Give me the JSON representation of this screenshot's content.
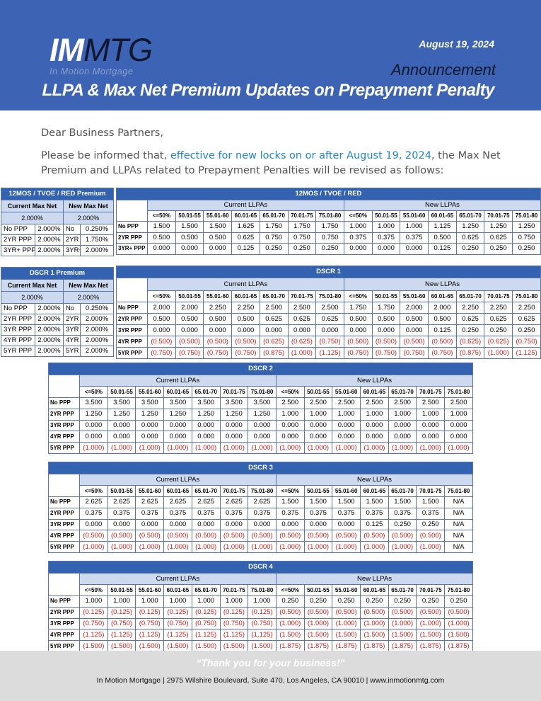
{
  "header": {
    "logo_im": "IM",
    "logo_mtg": "MTG",
    "logo_sub": "In Motion Mortgage",
    "date": "August 19, 2024",
    "announcement": "Announcement",
    "title": "LLPA & Max Net Premium Updates on Prepayment Penalty"
  },
  "intro": {
    "greeting": "Dear Business Partners,",
    "p_pre": "Please be informed that, ",
    "p_hl": "effective for new locks on or after August 19, 2024",
    "p_post": ", the Max Net Premium and LLPAs related to Prepayment Penalties will be revised as follows:"
  },
  "ranges": [
    "<=50%",
    "50.01-55",
    "55.01-60",
    "60.01-65",
    "65.01-70",
    "70.01-75",
    "75.01-80"
  ],
  "group_labels": {
    "current": "Current LLPAs",
    "new": "New LLPAs"
  },
  "premium_headers": {
    "current": "Current Max Net",
    "new": "New Max Net"
  },
  "premium_tables": [
    {
      "title": "12MOS / TVOE / RED  Premium",
      "current_top": "2.000%",
      "new_top": "2.000%",
      "rows": [
        [
          "No PPP",
          "2.000%",
          "No",
          "0.250%"
        ],
        [
          "2YR PPP",
          "2.000%",
          "2YR",
          "1.750%"
        ],
        [
          "3YR+ PPP",
          "2.000%",
          "3YR+",
          "2.000%"
        ]
      ]
    },
    {
      "title": "DSCR 1 Premium",
      "current_top": "2.000%",
      "new_top": "2.000%",
      "rows": [
        [
          "No PPP",
          "2.000%",
          "No",
          "0.250%"
        ],
        [
          "2YR PPP",
          "2.000%",
          "2YR",
          "2.000%"
        ],
        [
          "3YR PPP",
          "2.000%",
          "3YR",
          "2.000%"
        ],
        [
          "4YR PPP",
          "2.000%",
          "4YR",
          "2.000%"
        ],
        [
          "5YR PPP",
          "2.000%",
          "5YR",
          "2.000%"
        ]
      ]
    }
  ],
  "llpa_tables": [
    {
      "title": "12MOS / TVOE / RED",
      "rows": [
        {
          "label": "No PPP",
          "current": [
            "1.500",
            "1.500",
            "1.500",
            "1.625",
            "1.750",
            "1.750",
            "1.750"
          ],
          "new": [
            "1.000",
            "1.000",
            "1.000",
            "1.125",
            "1.250",
            "1.250",
            "1.250"
          ]
        },
        {
          "label": "2YR PPP",
          "current": [
            "0.500",
            "0.500",
            "0.500",
            "0.625",
            "0.750",
            "0.750",
            "0.750"
          ],
          "new": [
            "0.375",
            "0.375",
            "0.375",
            "0.500",
            "0.625",
            "0.625",
            "0.750"
          ]
        },
        {
          "label": "3YR+ PPP",
          "current": [
            "0.000",
            "0.000",
            "0.000",
            "0.125",
            "0.250",
            "0.250",
            "0.250"
          ],
          "new": [
            "0.000",
            "0.000",
            "0.000",
            "0.125",
            "0.250",
            "0.250",
            "0.250"
          ]
        }
      ]
    },
    {
      "title": "DSCR 1",
      "rows": [
        {
          "label": "No PPP",
          "current": [
            "2.000",
            "2.000",
            "2.250",
            "2.250",
            "2.500",
            "2.500",
            "2.500"
          ],
          "new": [
            "1.750",
            "1.750",
            "2.000",
            "2.000",
            "2.250",
            "2.250",
            "2.250"
          ]
        },
        {
          "label": "2YR PPP",
          "current": [
            "0.500",
            "0.500",
            "0.500",
            "0.500",
            "0.625",
            "0.625",
            "0.625"
          ],
          "new": [
            "0.500",
            "0.500",
            "0.500",
            "0.500",
            "0.625",
            "0.625",
            "0.625"
          ]
        },
        {
          "label": "3YR PPP",
          "current": [
            "0.000",
            "0.000",
            "0.000",
            "0.000",
            "0.000",
            "0.000",
            "0.000"
          ],
          "new": [
            "0.000",
            "0.000",
            "0.000",
            "0.125",
            "0.250",
            "0.250",
            "0.250"
          ]
        },
        {
          "label": "4YR PPP",
          "current": [
            "(0.500)",
            "(0.500)",
            "(0.500)",
            "(0.500)",
            "(0.625)",
            "(0.625)",
            "(0.750)"
          ],
          "new": [
            "(0.500)",
            "(0.500)",
            "(0.500)",
            "(0.500)",
            "(0.625)",
            "(0.625)",
            "(0.750)"
          ]
        },
        {
          "label": "5YR PPP",
          "current": [
            "(0.750)",
            "(0.750)",
            "(0.750)",
            "(0.750)",
            "(0.875)",
            "(1.000)",
            "(1.125)"
          ],
          "new": [
            "(0.750)",
            "(0.750)",
            "(0.750)",
            "(0.750)",
            "(0.875)",
            "(1.000)",
            "(1.125)"
          ]
        }
      ]
    },
    {
      "title": "DSCR 2",
      "rows": [
        {
          "label": "No PPP",
          "current": [
            "3.500",
            "3.500",
            "3.500",
            "3.500",
            "3.500",
            "3.500",
            "3.500"
          ],
          "new": [
            "2.500",
            "2.500",
            "2.500",
            "2.500",
            "2.500",
            "2.500",
            "2.500"
          ]
        },
        {
          "label": "2YR PPP",
          "current": [
            "1.250",
            "1.250",
            "1.250",
            "1.250",
            "1.250",
            "1.250",
            "1.250"
          ],
          "new": [
            "1.000",
            "1.000",
            "1.000",
            "1.000",
            "1.000",
            "1.000",
            "1.000"
          ]
        },
        {
          "label": "3YR PPP",
          "current": [
            "0.000",
            "0.000",
            "0.000",
            "0.000",
            "0.000",
            "0.000",
            "0.000"
          ],
          "new": [
            "0.000",
            "0.000",
            "0.000",
            "0.000",
            "0.000",
            "0.000",
            "0.000"
          ]
        },
        {
          "label": "4YR PPP",
          "current": [
            "0.000",
            "0.000",
            "0.000",
            "0.000",
            "0.000",
            "0.000",
            "0.000"
          ],
          "new": [
            "0.000",
            "0.000",
            "0.000",
            "0.000",
            "0.000",
            "0.000",
            "0.000"
          ]
        },
        {
          "label": "5YR PPP",
          "current": [
            "(1.000)",
            "(1.000)",
            "(1.000)",
            "(1.000)",
            "(1.000)",
            "(1.000)",
            "(1.000)"
          ],
          "new": [
            "(1.000)",
            "(1.000)",
            "(1.000)",
            "(1.000)",
            "(1.000)",
            "(1.000)",
            "(1.000)"
          ]
        }
      ]
    },
    {
      "title": "DSCR 3",
      "rows": [
        {
          "label": "No PPP",
          "current": [
            "2.625",
            "2.625",
            "2.625",
            "2.625",
            "2.625",
            "2.625",
            "2.625"
          ],
          "new": [
            "1.500",
            "1.500",
            "1.500",
            "1.500",
            "1.500",
            "1.500",
            "N/A"
          ]
        },
        {
          "label": "2YR PPP",
          "current": [
            "0.375",
            "0.375",
            "0.375",
            "0.375",
            "0.375",
            "0.375",
            "0.375"
          ],
          "new": [
            "0.375",
            "0.375",
            "0.375",
            "0.375",
            "0.375",
            "0.375",
            "N/A"
          ]
        },
        {
          "label": "3YR PPP",
          "current": [
            "0.000",
            "0.000",
            "0.000",
            "0.000",
            "0.000",
            "0.000",
            "0.000"
          ],
          "new": [
            "0.000",
            "0.000",
            "0.000",
            "0.125",
            "0.250",
            "0.250",
            "N/A"
          ]
        },
        {
          "label": "4YR PPP",
          "current": [
            "(0.500)",
            "(0.500)",
            "(0.500)",
            "(0.500)",
            "(0.500)",
            "(0.500)",
            "(0.500)"
          ],
          "new": [
            "(0.500)",
            "(0.500)",
            "(0.500)",
            "(0.500)",
            "(0.500)",
            "(0.500)",
            "N/A"
          ]
        },
        {
          "label": "5YR PPP",
          "current": [
            "(1.000)",
            "(1.000)",
            "(1.000)",
            "(1.000)",
            "(1.000)",
            "(1.000)",
            "(1.000)"
          ],
          "new": [
            "(1.000)",
            "(1.000)",
            "(1.000)",
            "(1.000)",
            "(1.000)",
            "(1.000)",
            "N/A"
          ]
        }
      ]
    },
    {
      "title": "DSCR 4",
      "rows": [
        {
          "label": "No PPP",
          "current": [
            "1.000",
            "1.000",
            "1.000",
            "1.000",
            "1.000",
            "1.000",
            "1.000"
          ],
          "new": [
            "0.250",
            "0.250",
            "0.250",
            "0.250",
            "0.250",
            "0.250",
            "0.250"
          ]
        },
        {
          "label": "2YR PPP",
          "current": [
            "(0.125)",
            "(0.125)",
            "(0.125)",
            "(0.125)",
            "(0.125)",
            "(0.125)",
            "(0.125)"
          ],
          "new": [
            "(0.500)",
            "(0.500)",
            "(0.500)",
            "(0.500)",
            "(0.500)",
            "(0.500)",
            "(0.500)"
          ]
        },
        {
          "label": "3YR PPP",
          "current": [
            "(0.750)",
            "(0.750)",
            "(0.750)",
            "(0.750)",
            "(0.750)",
            "(0.750)",
            "(0.750)"
          ],
          "new": [
            "(1.000)",
            "(1.000)",
            "(1.000)",
            "(1.000)",
            "(1.000)",
            "(1.000)",
            "(1.000)"
          ]
        },
        {
          "label": "4YR PPP",
          "current": [
            "(1.125)",
            "(1.125)",
            "(1.125)",
            "(1.125)",
            "(1.125)",
            "(1.125)",
            "(1.125)"
          ],
          "new": [
            "(1.500)",
            "(1.500)",
            "(1.500)",
            "(1.500)",
            "(1.500)",
            "(1.500)",
            "(1.500)"
          ]
        },
        {
          "label": "5YR PPP",
          "current": [
            "(1.500)",
            "(1.500)",
            "(1.500)",
            "(1.500)",
            "(1.500)",
            "(1.500)",
            "(1.500)"
          ],
          "new": [
            "(1.875)",
            "(1.875)",
            "(1.875)",
            "(1.875)",
            "(1.875)",
            "(1.875)",
            "(1.875)"
          ]
        }
      ]
    }
  ],
  "footer": {
    "thanks": "“Thank you for your business!”",
    "address": "In Motion Mortgage | 2975 Wilshire Boulevard, Suite 470, Los Angeles, CA 90010 | www.inmotionmtg.com"
  }
}
